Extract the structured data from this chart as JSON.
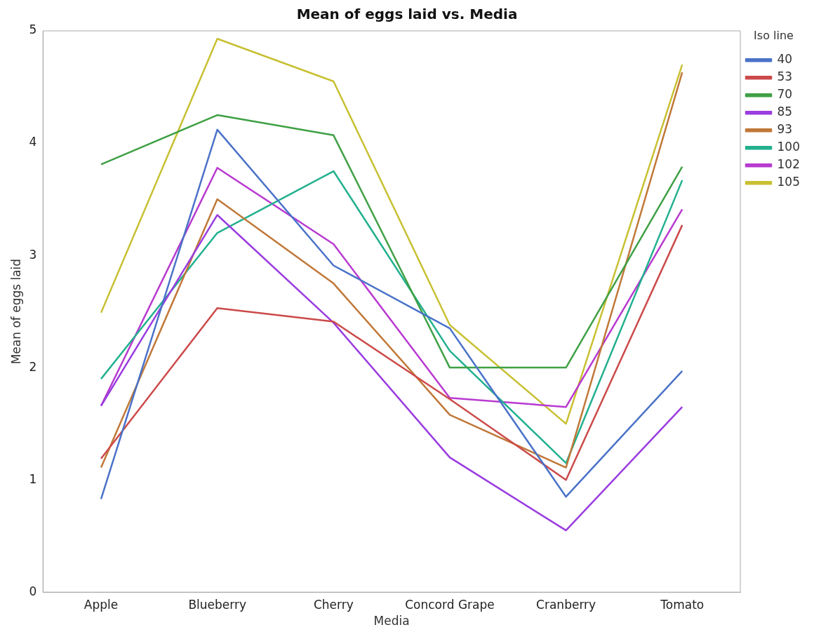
{
  "chart_data": {
    "type": "line",
    "title": "Mean of eggs laid vs. Media",
    "xlabel": "Media",
    "ylabel": "Mean of eggs laid",
    "legend_title": "Iso line",
    "legend": "top right",
    "grid": false,
    "marker": "none",
    "line_style": "solid",
    "categories": [
      "Apple",
      "Blueberry",
      "Cherry",
      "Concord Grape",
      "Cranberry",
      "Tomato"
    ],
    "ylim": [
      0,
      5
    ],
    "yticks": [
      0,
      1,
      2,
      3,
      4,
      5
    ],
    "series": [
      {
        "name": "40",
        "color": "#4a72c8",
        "values": [
          0.83,
          4.12,
          2.91,
          2.35,
          0.85,
          1.97
        ]
      },
      {
        "name": "53",
        "color": "#cc4a4a",
        "values": [
          1.19,
          2.53,
          2.41,
          1.72,
          1.0,
          3.27
        ]
      },
      {
        "name": "70",
        "color": "#3fa045",
        "values": [
          3.81,
          4.25,
          4.07,
          2.0,
          2.0,
          3.79
        ]
      },
      {
        "name": "85",
        "color": "#9a3ce0",
        "values": [
          1.66,
          3.36,
          2.4,
          1.2,
          0.55,
          1.65
        ]
      },
      {
        "name": "93",
        "color": "#c07838",
        "values": [
          1.11,
          3.5,
          2.75,
          1.58,
          1.11,
          4.63
        ]
      },
      {
        "name": "100",
        "color": "#22b08e",
        "values": [
          1.9,
          3.2,
          3.75,
          2.15,
          1.15,
          3.67
        ]
      },
      {
        "name": "102",
        "color": "#b83ad0",
        "values": [
          1.66,
          3.78,
          3.1,
          1.73,
          1.65,
          3.41
        ]
      },
      {
        "name": "105",
        "color": "#c8c032",
        "values": [
          2.49,
          4.93,
          4.55,
          2.38,
          1.5,
          4.7
        ]
      }
    ]
  }
}
